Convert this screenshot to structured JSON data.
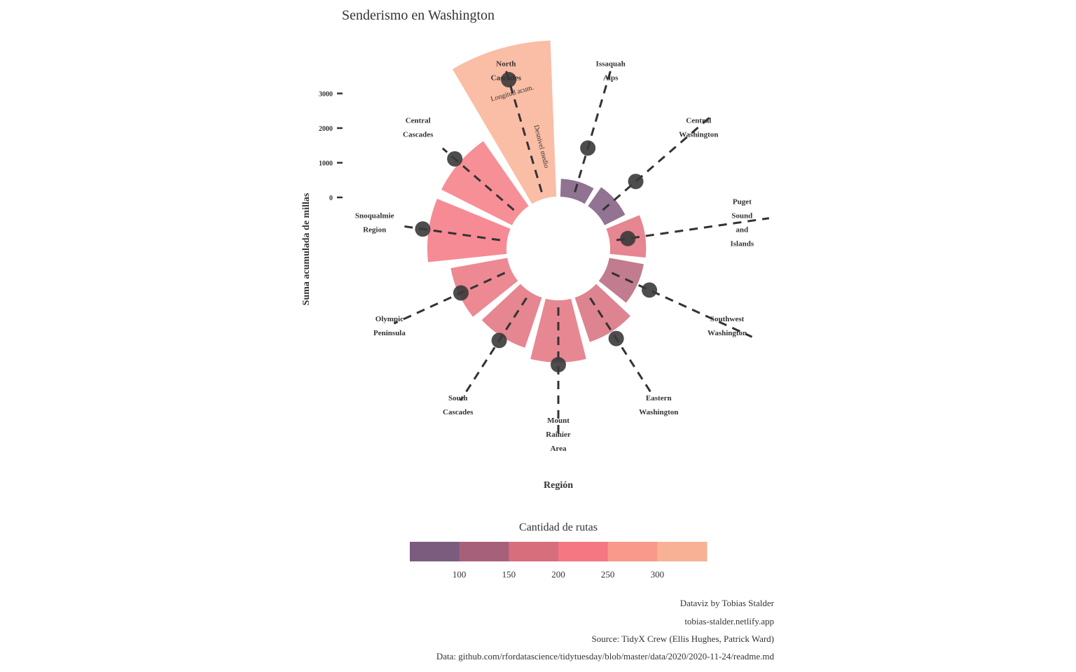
{
  "chart_data": {
    "type": "polar-bar",
    "title": "Senderismo en Washington",
    "xlabel": "Región",
    "ylabel": "Suma acumulada de millas",
    "y_ticks": [
      0,
      1000,
      2000,
      3000
    ],
    "annotations": {
      "length": "Longitud acum.",
      "gain": "Desnivel medio"
    },
    "categories": [
      "Issaquah Alps",
      "Central Washington",
      "Puget Sound and Islands",
      "Southwest Washington",
      "Eastern Washington",
      "Mount Rainier Area",
      "South Cascades",
      "Olympic Peninsula",
      "Snoqualmie Region",
      "Central Cascades",
      "North Cascades"
    ],
    "category_labels": [
      [
        "Issaquah",
        "Alps"
      ],
      [
        "Central",
        "Washington"
      ],
      [
        "Puget",
        "Sound",
        "and",
        "Islands"
      ],
      [
        "Southwest",
        "Washington"
      ],
      [
        "Eastern",
        "Washington"
      ],
      [
        "Mount",
        "Rainier",
        "Area"
      ],
      [
        "South",
        "Cascades"
      ],
      [
        "Olympic",
        "Peninsula"
      ],
      [
        "Snoqualmie",
        "Region"
      ],
      [
        "Central",
        "Cascades"
      ],
      [
        "North",
        "Cascades"
      ]
    ],
    "length_sum": [
      390,
      500,
      780,
      760,
      1020,
      1350,
      1150,
      1250,
      1720,
      1720,
      3400
    ],
    "avg_gain": [
      1150,
      1100,
      400,
      1050,
      1200,
      1400,
      1250,
      1200,
      1850,
      1850,
      2700
    ],
    "gain_line_end": [
      3000,
      3300,
      3500,
      3500,
      2700,
      3000,
      2800,
      2800,
      2250,
      2200,
      3000
    ],
    "trail_count": [
      35,
      55,
      190,
      130,
      170,
      195,
      190,
      210,
      230,
      240,
      350
    ],
    "colors": {
      "scale": [
        "#7b5b7e",
        "#a6607a",
        "#d76e7c",
        "#f47782",
        "#f8998c",
        "#f9b195"
      ],
      "dot": "#3a3a3a",
      "dashed": "#333333"
    },
    "legend": {
      "title": "Cantidad de rutas",
      "ticks": [
        "100",
        "150",
        "200",
        "250",
        "300"
      ],
      "placement": "bottom"
    }
  },
  "caption": [
    "Dataviz by Tobias Stalder",
    "tobias-stalder.netlify.app",
    "Source: TidyX Crew (Ellis Hughes, Patrick Ward)",
    "Data: github.com/rfordatascience/tidytuesday/blob/master/data/2020/2020-11-24/readme.md"
  ]
}
